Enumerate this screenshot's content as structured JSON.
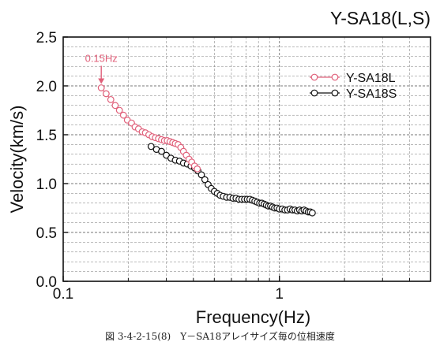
{
  "figure": {
    "caption": "図 3-4-2-15(8)　Y－SA18アレイサイズ毎の位相速度"
  },
  "chart_data": {
    "type": "scatter",
    "title": "Y-SA18(L,S)",
    "xlabel": "Frequency(Hz)",
    "ylabel": "Velocity(km/s)",
    "x_scale": "log",
    "xlim": [
      0.1,
      5
    ],
    "ylim": [
      0.0,
      2.5
    ],
    "x_ticks": [
      "0.1",
      "1"
    ],
    "y_ticks": [
      "0.0",
      "0.5",
      "1.0",
      "1.5",
      "2.0",
      "2.5"
    ],
    "grid": true,
    "legend_position": "top-right",
    "annotation": {
      "text": "0.15Hz",
      "x": 0.15,
      "y": 1.98,
      "color": "#e0607a"
    },
    "series": [
      {
        "name": "Y-SA18L",
        "color": "#e0607a",
        "marker": "open-circle",
        "line": true,
        "points": [
          [
            0.15,
            1.98
          ],
          [
            0.158,
            1.92
          ],
          [
            0.166,
            1.86
          ],
          [
            0.174,
            1.8
          ],
          [
            0.182,
            1.75
          ],
          [
            0.19,
            1.7
          ],
          [
            0.198,
            1.65
          ],
          [
            0.207,
            1.62
          ],
          [
            0.215,
            1.58
          ],
          [
            0.223,
            1.56
          ],
          [
            0.232,
            1.53
          ],
          [
            0.24,
            1.52
          ],
          [
            0.249,
            1.5
          ],
          [
            0.258,
            1.48
          ],
          [
            0.267,
            1.47
          ],
          [
            0.276,
            1.46
          ],
          [
            0.285,
            1.45
          ],
          [
            0.294,
            1.44
          ],
          [
            0.303,
            1.44
          ],
          [
            0.312,
            1.43
          ],
          [
            0.321,
            1.42
          ],
          [
            0.33,
            1.41
          ],
          [
            0.34,
            1.4
          ],
          [
            0.35,
            1.37
          ],
          [
            0.36,
            1.33
          ],
          [
            0.371,
            1.29
          ],
          [
            0.382,
            1.25
          ],
          [
            0.393,
            1.22
          ],
          [
            0.405,
            1.18
          ],
          [
            0.417,
            1.15
          ]
        ]
      },
      {
        "name": "Y-SA18S",
        "color": "#111111",
        "marker": "open-circle",
        "line": true,
        "points": [
          [
            0.255,
            1.38
          ],
          [
            0.27,
            1.35
          ],
          [
            0.285,
            1.33
          ],
          [
            0.3,
            1.29
          ],
          [
            0.315,
            1.26
          ],
          [
            0.33,
            1.24
          ],
          [
            0.345,
            1.23
          ],
          [
            0.36,
            1.21
          ],
          [
            0.375,
            1.2
          ],
          [
            0.39,
            1.18
          ],
          [
            0.405,
            1.16
          ],
          [
            0.42,
            1.13
          ],
          [
            0.436,
            1.09
          ],
          [
            0.452,
            1.04
          ],
          [
            0.468,
            0.99
          ],
          [
            0.484,
            0.95
          ],
          [
            0.5,
            0.92
          ],
          [
            0.516,
            0.9
          ],
          [
            0.532,
            0.88
          ],
          [
            0.55,
            0.87
          ],
          [
            0.57,
            0.86
          ],
          [
            0.59,
            0.86
          ],
          [
            0.61,
            0.85
          ],
          [
            0.63,
            0.85
          ],
          [
            0.65,
            0.84
          ],
          [
            0.67,
            0.84
          ],
          [
            0.69,
            0.84
          ],
          [
            0.71,
            0.84
          ],
          [
            0.73,
            0.84
          ],
          [
            0.75,
            0.83
          ],
          [
            0.77,
            0.82
          ],
          [
            0.79,
            0.81
          ],
          [
            0.81,
            0.8
          ],
          [
            0.83,
            0.8
          ],
          [
            0.85,
            0.79
          ],
          [
            0.87,
            0.78
          ],
          [
            0.89,
            0.77
          ],
          [
            0.91,
            0.77
          ],
          [
            0.93,
            0.76
          ],
          [
            0.95,
            0.75
          ],
          [
            0.975,
            0.75
          ],
          [
            1.0,
            0.74
          ],
          [
            1.03,
            0.74
          ],
          [
            1.06,
            0.73
          ],
          [
            1.09,
            0.73
          ],
          [
            1.12,
            0.74
          ],
          [
            1.15,
            0.73
          ],
          [
            1.18,
            0.73
          ],
          [
            1.21,
            0.72
          ],
          [
            1.24,
            0.73
          ],
          [
            1.27,
            0.72
          ],
          [
            1.3,
            0.73
          ],
          [
            1.33,
            0.72
          ],
          [
            1.36,
            0.71
          ],
          [
            1.39,
            0.71
          ],
          [
            1.42,
            0.7
          ]
        ]
      }
    ]
  }
}
